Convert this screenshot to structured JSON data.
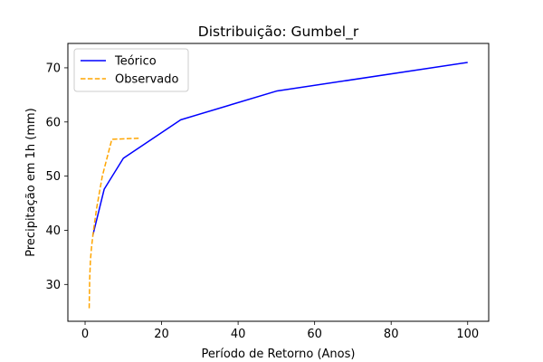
{
  "chart_data": {
    "type": "line",
    "title": "Distribuição: Gumbel_r",
    "xlabel": "Período de Retorno (Anos)",
    "ylabel": "Precipitação em 1h (mm)",
    "xlim": [
      -4.5,
      105.5
    ],
    "ylim": [
      23.2,
      74.5
    ],
    "xticks": [
      0,
      20,
      40,
      60,
      80,
      100
    ],
    "xtick_labels": [
      "0",
      "20",
      "40",
      "60",
      "80",
      "100"
    ],
    "yticks": [
      30,
      40,
      50,
      60,
      70
    ],
    "ytick_labels": [
      "30",
      "40",
      "50",
      "60",
      "70"
    ],
    "grid": false,
    "legend_position": "upper-left",
    "series": [
      {
        "name": "Teórico",
        "style": "solid",
        "color": "#0000ff",
        "x": [
          2,
          5,
          10,
          25,
          50,
          100
        ],
        "y": [
          39.0,
          47.6,
          53.3,
          60.4,
          65.7,
          71.0
        ]
      },
      {
        "name": "Observado",
        "style": "dashed",
        "color": "#ffa500",
        "x": [
          1.07,
          1.2,
          1.4,
          1.7,
          2.2,
          3.0,
          4.5,
          7.0,
          14.0
        ],
        "y": [
          25.6,
          31.0,
          34.5,
          37.0,
          40.0,
          44.0,
          50.0,
          56.8,
          57.0
        ]
      }
    ]
  }
}
